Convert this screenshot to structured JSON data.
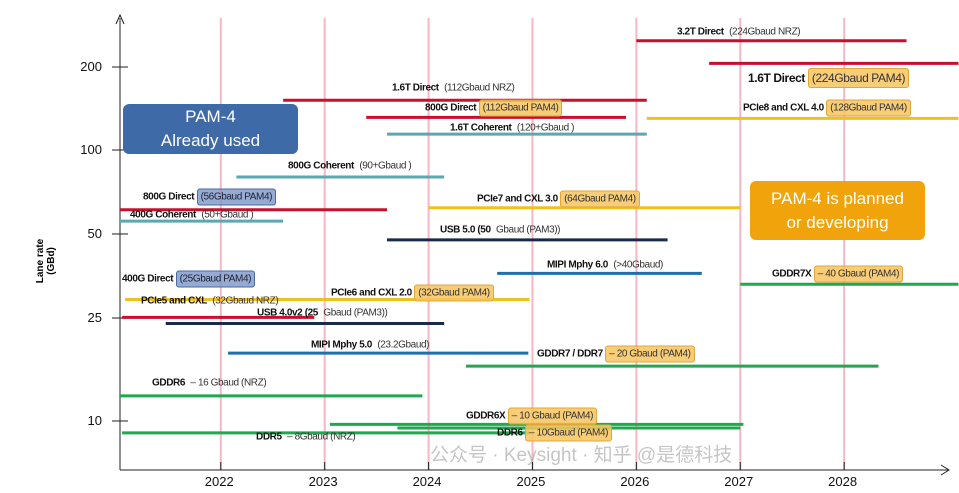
{
  "chart_data": {
    "type": "timeline-range",
    "ylabel": "Lane rate (GBd)",
    "yscale": "log",
    "x_ticks": [
      "2022",
      "2023",
      "2024",
      "2025",
      "2026",
      "2027",
      "2028"
    ],
    "y_ticks": [
      "200",
      "100",
      "50",
      "25",
      "10"
    ],
    "grid": "vertical year lines",
    "series": [
      {
        "bold": "3.2T Direct",
        "rest": "(224Gbaud NRZ)",
        "hl": "",
        "color": "#c8102e",
        "start": 2026.0,
        "end": 2028.6,
        "rate": 247
      },
      {
        "bold": "1.6T Direct",
        "rest": "(224Gbaud PAM4)",
        "hl": "orange",
        "color": "#c8102e",
        "start": 2026.7,
        "end": 2029.1,
        "rate": 205,
        "big": true
      },
      {
        "bold": "1.6T Direct",
        "rest": "(112Gbaud NRZ)",
        "hl": "",
        "color": "#c8102e",
        "start": 2022.6,
        "end": 2026.1,
        "rate": 151
      },
      {
        "bold": "800G Direct",
        "rest": "(112Gbaud PAM4)",
        "hl": "orange",
        "color": "#c8102e",
        "start": 2023.4,
        "end": 2025.9,
        "rate": 131
      },
      {
        "bold": "1.6T Coherent",
        "rest": "(120+Gbaud )",
        "hl": "",
        "color": "#5aa8b0",
        "start": 2023.6,
        "end": 2026.1,
        "rate": 114
      },
      {
        "bold": "PCIe8 and CXL 4.0",
        "rest": "(128Gbaud PAM4)",
        "hl": "orange",
        "color": "#f0c020",
        "start": 2026.1,
        "end": 2029.1,
        "rate": 130
      },
      {
        "bold": "800G Coherent",
        "rest": "(90+Gbaud )",
        "hl": "",
        "color": "#5aa8b0",
        "start": 2022.15,
        "end": 2024.15,
        "rate": 80
      },
      {
        "bold": "800G Direct",
        "rest": "(56Gbaud PAM4)",
        "hl": "blue",
        "color": "#c8102e",
        "start": 2021.03,
        "end": 2023.6,
        "rate": 61
      },
      {
        "bold": "400G Coherent",
        "rest": "(50+Gbaud )",
        "hl": "",
        "color": "#5aa8b0",
        "start": 2021.03,
        "end": 2022.6,
        "rate": 55.5
      },
      {
        "bold": "PCIe7 and CXL 3.0",
        "rest": "(64Gbaud PAM4)",
        "hl": "orange",
        "color": "#f0c020",
        "start": 2024.0,
        "end": 2027.0,
        "rate": 62
      },
      {
        "bold": "USB 5.0 (50",
        "rest": "Gbaud (PAM3))",
        "hl": "",
        "color": "#1a2a4a",
        "start": 2023.6,
        "end": 2026.3,
        "rate": 47.5
      },
      {
        "bold": "MIPI Mphy 6.0",
        "rest": "(>40Gbaud)",
        "hl": "",
        "color": "#1f6fb0",
        "start": 2024.66,
        "end": 2026.63,
        "rate": 36
      },
      {
        "bold": "GDDR7X",
        "rest": "– 40 Gbaud (PAM4)",
        "hl": "orange",
        "color": "#1fa84f",
        "start": 2027.0,
        "end": 2029.1,
        "rate": 32.9
      },
      {
        "bold": "400G Direct",
        "rest": "(25Gbaud PAM4)",
        "hl": "blue",
        "color": "#c8102e",
        "start": 2021.05,
        "end": 2022.9,
        "rate": 25
      },
      {
        "bold": "PCIe5 and CXL",
        "rest": "(32Gbaud NRZ)",
        "hl": "",
        "color": "#f0c020",
        "start": 2021.08,
        "end": 2024.97,
        "rate": 29
      },
      {
        "bold": "PCIe6 and CXL 2.0",
        "rest": "(32Gbaud PAM4)",
        "hl": "orange",
        "color": "#f0c020",
        "start": 2021.08,
        "end": 2024.97,
        "rate": 29
      },
      {
        "bold": "USB 4.0v2 (25",
        "rest": "Gbaud (PAM3))",
        "hl": "",
        "color": "#1a2a4a",
        "start": 2021.47,
        "end": 2024.15,
        "rate": 23.8
      },
      {
        "bold": "MIPI Mphy 5.0",
        "rest": "(23.2Gbaud)",
        "hl": "",
        "color": "#1f6fb0",
        "start": 2022.07,
        "end": 2024.96,
        "rate": 18.3
      },
      {
        "bold": "GDDR7 / DDR7",
        "rest": "– 20 Gbaud (PAM4)",
        "hl": "orange",
        "color": "#1fa84f",
        "start": 2024.36,
        "end": 2028.33,
        "rate": 16.3
      },
      {
        "bold": "GDDR6",
        "rest": "– 16 Gbaud (NRZ)",
        "hl": "",
        "color": "#1fa84f",
        "start": 2021.03,
        "end": 2023.94,
        "rate": 12.5
      },
      {
        "bold": "GDDR6X",
        "rest": "– 10 Gbaud (PAM4)",
        "hl": "orange",
        "color": "#1fa84f",
        "start": 2023.05,
        "end": 2027.03,
        "rate": 9.7
      },
      {
        "bold": "DDR6",
        "rest": "– 10Gbaud (PAM4)",
        "hl": "orange",
        "color": "#1fa84f",
        "start": 2023.7,
        "end": 2027.0,
        "rate": 9.4
      },
      {
        "bold": "DDR5",
        "rest": "– 8Gbaud (NRZ)",
        "hl": "",
        "color": "#1fa84f",
        "start": 2021.05,
        "end": 2024.97,
        "rate": 9.0
      }
    ],
    "annotations": [
      {
        "lines": [
          "PAM-4",
          "Already used"
        ],
        "color": "#3f6aa8"
      },
      {
        "lines": [
          "PAM-4 is planned",
          "or developing"
        ],
        "color": "#f0a30a"
      }
    ]
  },
  "watermark": "公众号 · Keysight · 知乎 @是德科技"
}
